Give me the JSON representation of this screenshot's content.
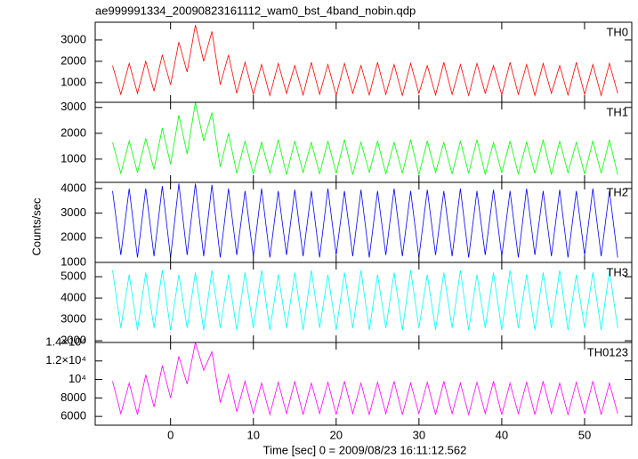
{
  "title": "ae999991334_20090823161112_wam0_bst_4band_nobin.qdp",
  "xlabel": "Time [sec] 0 = 2009/08/23 16:11:12.562",
  "ylabel": "Counts/sec",
  "xlim": [
    -9.1,
    55.7
  ],
  "xticks": [
    0,
    10,
    20,
    30,
    40,
    50
  ],
  "x": [
    -7,
    -6,
    -5,
    -4,
    -3,
    -2,
    -1,
    0,
    1,
    2,
    3,
    4,
    5,
    6,
    7,
    8,
    9,
    10,
    11,
    12,
    13,
    14,
    15,
    16,
    17,
    18,
    19,
    20,
    21,
    22,
    23,
    24,
    25,
    26,
    27,
    28,
    29,
    30,
    31,
    32,
    33,
    34,
    35,
    36,
    37,
    38,
    39,
    40,
    41,
    42,
    43,
    44,
    45,
    46,
    47,
    48,
    49,
    50,
    51,
    52,
    53,
    54
  ],
  "chart_data": [
    {
      "type": "line",
      "label": "TH0",
      "color": "#ff0000",
      "ylim": [
        80,
        3830
      ],
      "yticks": [
        1000,
        2000,
        3000
      ],
      "values": [
        1800,
        450,
        1900,
        500,
        2000,
        600,
        2300,
        900,
        2900,
        1500,
        3700,
        2000,
        3400,
        900,
        2300,
        500,
        1950,
        450,
        1850,
        400,
        1900,
        500,
        1800,
        420,
        1950,
        450,
        1850,
        400,
        1900,
        500,
        1800,
        420,
        1950,
        450,
        1850,
        400,
        1900,
        500,
        1800,
        420,
        1950,
        450,
        1850,
        400,
        1900,
        500,
        1800,
        420,
        1950,
        450,
        1850,
        400,
        1900,
        500,
        1800,
        420,
        1950,
        450,
        1850,
        400,
        1900,
        500
      ]
    },
    {
      "type": "line",
      "label": "TH1",
      "color": "#00ff00",
      "ylim": [
        100,
        3200
      ],
      "yticks": [
        1000,
        2000,
        3000
      ],
      "values": [
        1650,
        450,
        1700,
        480,
        1800,
        600,
        2200,
        800,
        2700,
        1200,
        3200,
        1700,
        2800,
        700,
        2000,
        450,
        1700,
        420,
        1650,
        450,
        1750,
        400,
        1700,
        480,
        1650,
        420,
        1700,
        450,
        1750,
        400,
        1650,
        480,
        1700,
        420,
        1650,
        450,
        1750,
        400,
        1700,
        480,
        1650,
        420,
        1700,
        450,
        1750,
        400,
        1650,
        480,
        1700,
        420,
        1650,
        450,
        1750,
        400,
        1700,
        480,
        1650,
        420,
        1700,
        450,
        1750,
        400
      ]
    },
    {
      "type": "line",
      "label": "TH2",
      "color": "#0000ff",
      "ylim": [
        1000,
        4250
      ],
      "yticks": [
        1000,
        2000,
        3000,
        4000
      ],
      "values": [
        3900,
        1300,
        4000,
        1200,
        4000,
        1250,
        4100,
        1200,
        4200,
        1300,
        4200,
        1250,
        4150,
        1200,
        4000,
        1300,
        3900,
        1250,
        4000,
        1200,
        3900,
        1300,
        3950,
        1250,
        3900,
        1200,
        4000,
        1300,
        3900,
        1250,
        3950,
        1200,
        3900,
        1300,
        4000,
        1250,
        3900,
        1200,
        3950,
        1300,
        3900,
        1250,
        4000,
        1200,
        3900,
        1300,
        3950,
        1250,
        3900,
        1200,
        4000,
        1300,
        3900,
        1250,
        3950,
        1200,
        3900,
        1300,
        4000,
        1250,
        3900,
        1200
      ]
    },
    {
      "type": "line",
      "label": "TH3",
      "color": "#00ffff",
      "ylim": [
        1920,
        5670
      ],
      "yticks": [
        2000,
        3000,
        4000,
        5000
      ],
      "values": [
        5300,
        2600,
        5100,
        2500,
        5200,
        2600,
        5300,
        2500,
        5100,
        2600,
        5200,
        2500,
        5300,
        2600,
        5100,
        2500,
        5200,
        2600,
        5300,
        2500,
        5100,
        2600,
        5200,
        2500,
        5300,
        2600,
        5100,
        2500,
        5200,
        2600,
        5300,
        2500,
        5100,
        2600,
        5200,
        2500,
        5300,
        2600,
        5100,
        2500,
        5200,
        2600,
        5300,
        2500,
        5100,
        2600,
        5200,
        2500,
        5300,
        2600,
        5100,
        2500,
        5200,
        2600,
        5300,
        2500,
        5100,
        2600,
        5200,
        2500,
        5300,
        2600
      ]
    },
    {
      "type": "line",
      "label": "TH0123",
      "color": "#ff00ff",
      "ylim": [
        5050,
        14000
      ],
      "yticks": [
        6000,
        8000,
        {
          "value": 10000,
          "label": "10⁴"
        },
        {
          "value": 12000,
          "label": "1.2×10⁴"
        },
        {
          "value": 14000,
          "label": "1.4×10⁴"
        }
      ],
      "values": [
        9800,
        6300,
        9600,
        6200,
        10500,
        7000,
        11500,
        8000,
        12500,
        9500,
        14000,
        11000,
        13000,
        7500,
        10500,
        6500,
        9800,
        6300,
        9600,
        6200,
        9700,
        6300,
        9800,
        6200,
        9600,
        6300,
        9700,
        6200,
        9800,
        6300,
        9600,
        6200,
        9700,
        6300,
        9800,
        6200,
        9600,
        6300,
        9700,
        6200,
        9800,
        6300,
        9600,
        6200,
        9700,
        6300,
        9800,
        6200,
        9600,
        6300,
        9700,
        6200,
        9800,
        6300,
        9600,
        6200,
        9700,
        6300,
        9800,
        6200,
        9600,
        6300
      ]
    }
  ]
}
